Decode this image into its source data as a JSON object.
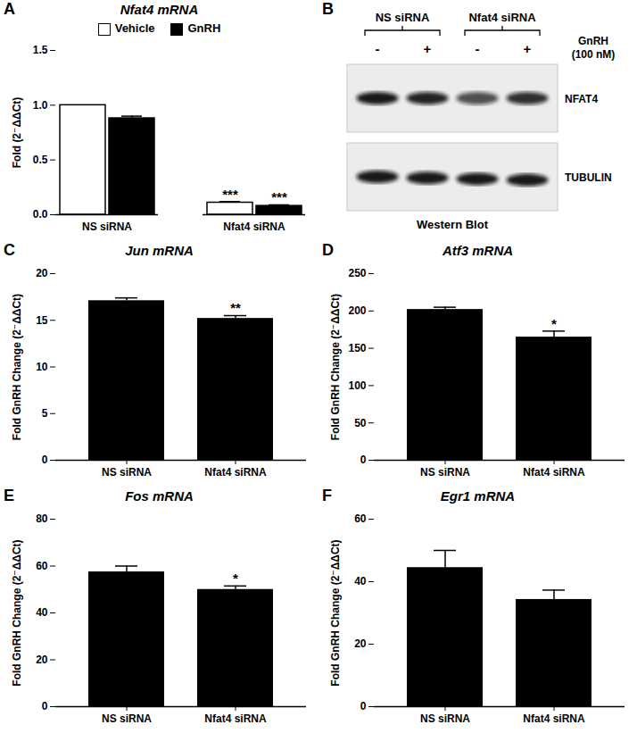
{
  "chart_data": [
    {
      "type": "bar",
      "panel": "A",
      "title": "Nfat4 mRNA",
      "ylabel": "Fold (2⁻ΔΔCt)",
      "categories": [
        "NS siRNA",
        "Nfat4 siRNA"
      ],
      "series": [
        {
          "name": "Vehicle",
          "color": "#ffffff",
          "values": [
            1.0,
            0.11
          ],
          "errors": [
            null,
            0.01
          ]
        },
        {
          "name": "GnRH",
          "color": "#000000",
          "values": [
            0.88,
            0.08
          ],
          "errors": [
            0.02,
            0.01
          ]
        }
      ],
      "ylim": [
        0,
        1.5
      ],
      "yticks": [
        {
          "value": 0,
          "label": "0.0"
        },
        0.5,
        {
          "value": 1,
          "label": "1.0"
        },
        1.5
      ],
      "legend": "top",
      "annotations": [
        {
          "category": "Nfat4 siRNA",
          "series": "Vehicle",
          "text": "***"
        },
        {
          "category": "Nfat4 siRNA",
          "series": "GnRH",
          "text": "***"
        }
      ]
    },
    {
      "type": "western_blot",
      "panel": "B",
      "groups": [
        "NS siRNA",
        "Nfat4 siRNA"
      ],
      "treatment": {
        "label": [
          "GnRH",
          "(100 nM)"
        ],
        "lanes": [
          "-",
          "+",
          "-",
          "+"
        ]
      },
      "rows": [
        "NFAT4",
        "TUBULIN"
      ],
      "caption": "Western Blot"
    },
    {
      "type": "bar",
      "panel": "C",
      "title": "Jun mRNA",
      "ylabel": "Fold GnRH Change (2⁻ΔΔCt)",
      "categories": [
        "NS siRNA",
        "Nfat4 siRNA"
      ],
      "values": [
        17.1,
        15.2
      ],
      "errors": [
        0.3,
        0.3
      ],
      "color": "#000000",
      "ylim": [
        0,
        20
      ],
      "yticks": [
        0,
        5,
        10,
        15,
        20
      ],
      "annotations": [
        {
          "category": "Nfat4 siRNA",
          "text": "**"
        }
      ]
    },
    {
      "type": "bar",
      "panel": "D",
      "title": "Atf3 mRNA",
      "ylabel": "Fold GnRH Change (2⁻ΔΔCt)",
      "categories": [
        "NS siRNA",
        "Nfat4 siRNA"
      ],
      "values": [
        202,
        165
      ],
      "errors": [
        3,
        8
      ],
      "color": "#000000",
      "ylim": [
        0,
        250
      ],
      "yticks": [
        0,
        50,
        100,
        150,
        200,
        250
      ],
      "annotations": [
        {
          "category": "Nfat4 siRNA",
          "text": "*"
        }
      ]
    },
    {
      "type": "bar",
      "panel": "E",
      "title": "Fos mRNA",
      "ylabel": "Fold GnRH Change (2⁻ΔΔCt)",
      "categories": [
        "NS siRNA",
        "Nfat4 siRNA"
      ],
      "values": [
        57.5,
        50
      ],
      "errors": [
        2.5,
        1.5
      ],
      "color": "#000000",
      "ylim": [
        0,
        80
      ],
      "yticks": [
        0,
        20,
        40,
        60,
        80
      ],
      "annotations": [
        {
          "category": "Nfat4 siRNA",
          "text": "*"
        }
      ]
    },
    {
      "type": "bar",
      "panel": "F",
      "title": "Egr1 mRNA",
      "ylabel": "Fold GnRH Change (2⁻ΔΔCt)",
      "categories": [
        "NS siRNA",
        "Nfat4 siRNA"
      ],
      "values": [
        44.5,
        34.3
      ],
      "errors": [
        5.5,
        3
      ],
      "color": "#000000",
      "ylim": [
        0,
        60
      ],
      "yticks": [
        0,
        20,
        40,
        60
      ]
    }
  ]
}
